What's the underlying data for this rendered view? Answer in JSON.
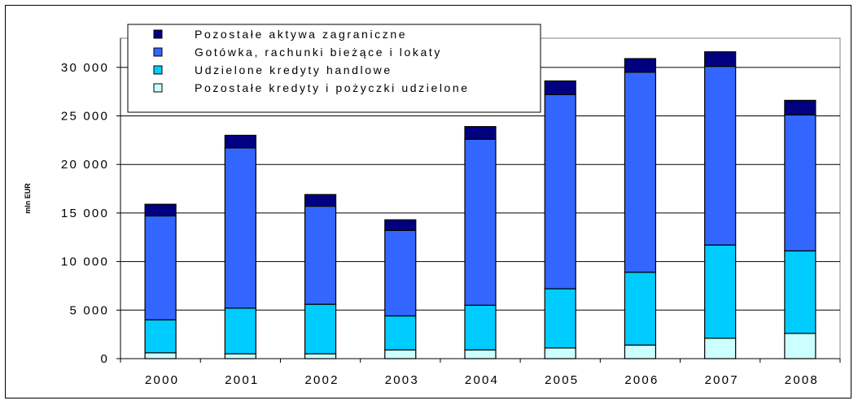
{
  "chart_data": {
    "type": "bar",
    "stacked": true,
    "title": "",
    "xlabel": "",
    "ylabel": "mln EUR",
    "ylim": [
      0,
      33000
    ],
    "yticks": [
      0,
      5000,
      10000,
      15000,
      20000,
      25000,
      30000
    ],
    "ytick_labels": [
      "0",
      "5 000",
      "10 000",
      "15 000",
      "20 000",
      "25 000",
      "30 000"
    ],
    "grid": true,
    "legend_position": "top-left",
    "categories": [
      "2000",
      "2001",
      "2002",
      "2003",
      "2004",
      "2005",
      "2006",
      "2007",
      "2008"
    ],
    "series": [
      {
        "name": "Pozostałe kredyty i pożyczki udzielone",
        "color": "#ccffff",
        "values": [
          600,
          500,
          500,
          900,
          900,
          1100,
          1400,
          2100,
          2600
        ]
      },
      {
        "name": "Udzielone kredyty handlowe",
        "color": "#00ccff",
        "values": [
          3400,
          4700,
          5100,
          3500,
          4600,
          6100,
          7500,
          9600,
          8500
        ]
      },
      {
        "name": "Gotówka, rachunki bieżące i lokaty",
        "color": "#3366ff",
        "values": [
          10700,
          16500,
          10100,
          8800,
          17100,
          20000,
          20600,
          18400,
          14000
        ]
      },
      {
        "name": "Pozostałe aktywa zagraniczne",
        "color": "#000080",
        "values": [
          1200,
          1300,
          1200,
          1100,
          1300,
          1400,
          1400,
          1500,
          1500
        ]
      }
    ],
    "legend_order": [
      3,
      2,
      1,
      0
    ]
  }
}
